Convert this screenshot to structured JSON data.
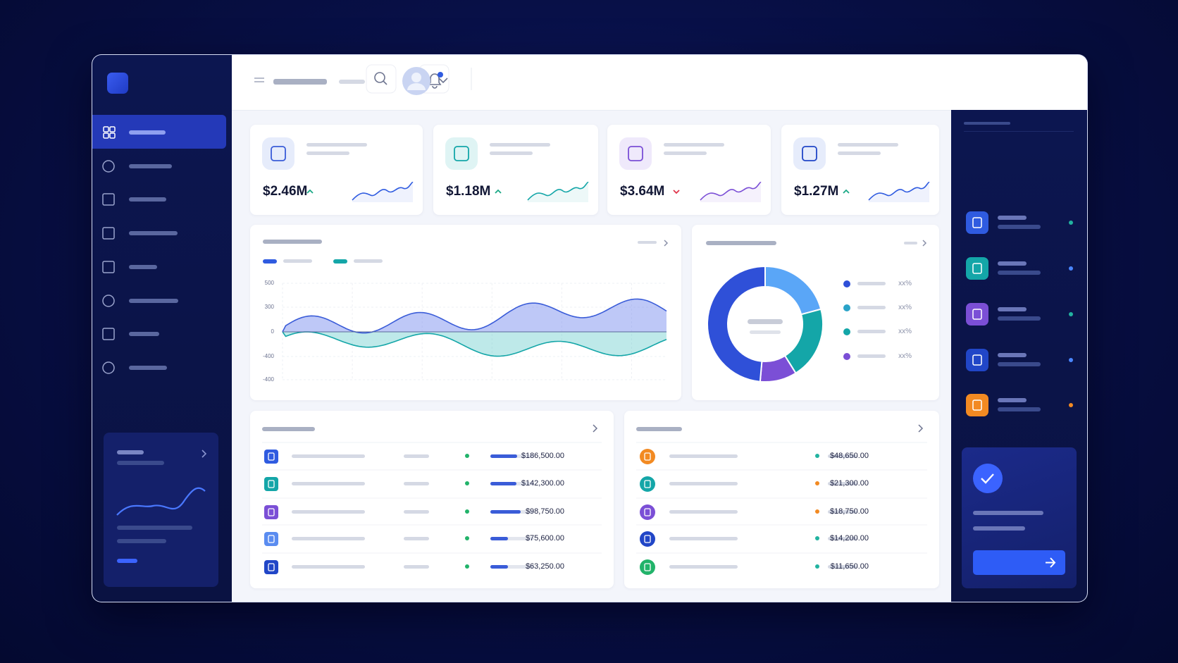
{
  "kpis": [
    "$2.46M",
    "$1.18M",
    "$3.64M",
    "$1.27M"
  ],
  "area_chart": {
    "yticks": [
      "500",
      "300",
      "0",
      "-400",
      "-400"
    ]
  },
  "donut": {
    "percent_labels": [
      "xx%",
      "xx%",
      "xx%",
      "xx%"
    ]
  },
  "tables": [
    {
      "amounts": [
        "$186,500.00",
        "$142,300.00",
        "$98,750.00",
        "$75,600.00",
        "$63,250.00"
      ]
    },
    {
      "amounts": [
        "$48,650.00",
        "$21,300.00",
        "$18,750.00",
        "$14,200.00",
        "$11,650.00"
      ]
    }
  ]
}
